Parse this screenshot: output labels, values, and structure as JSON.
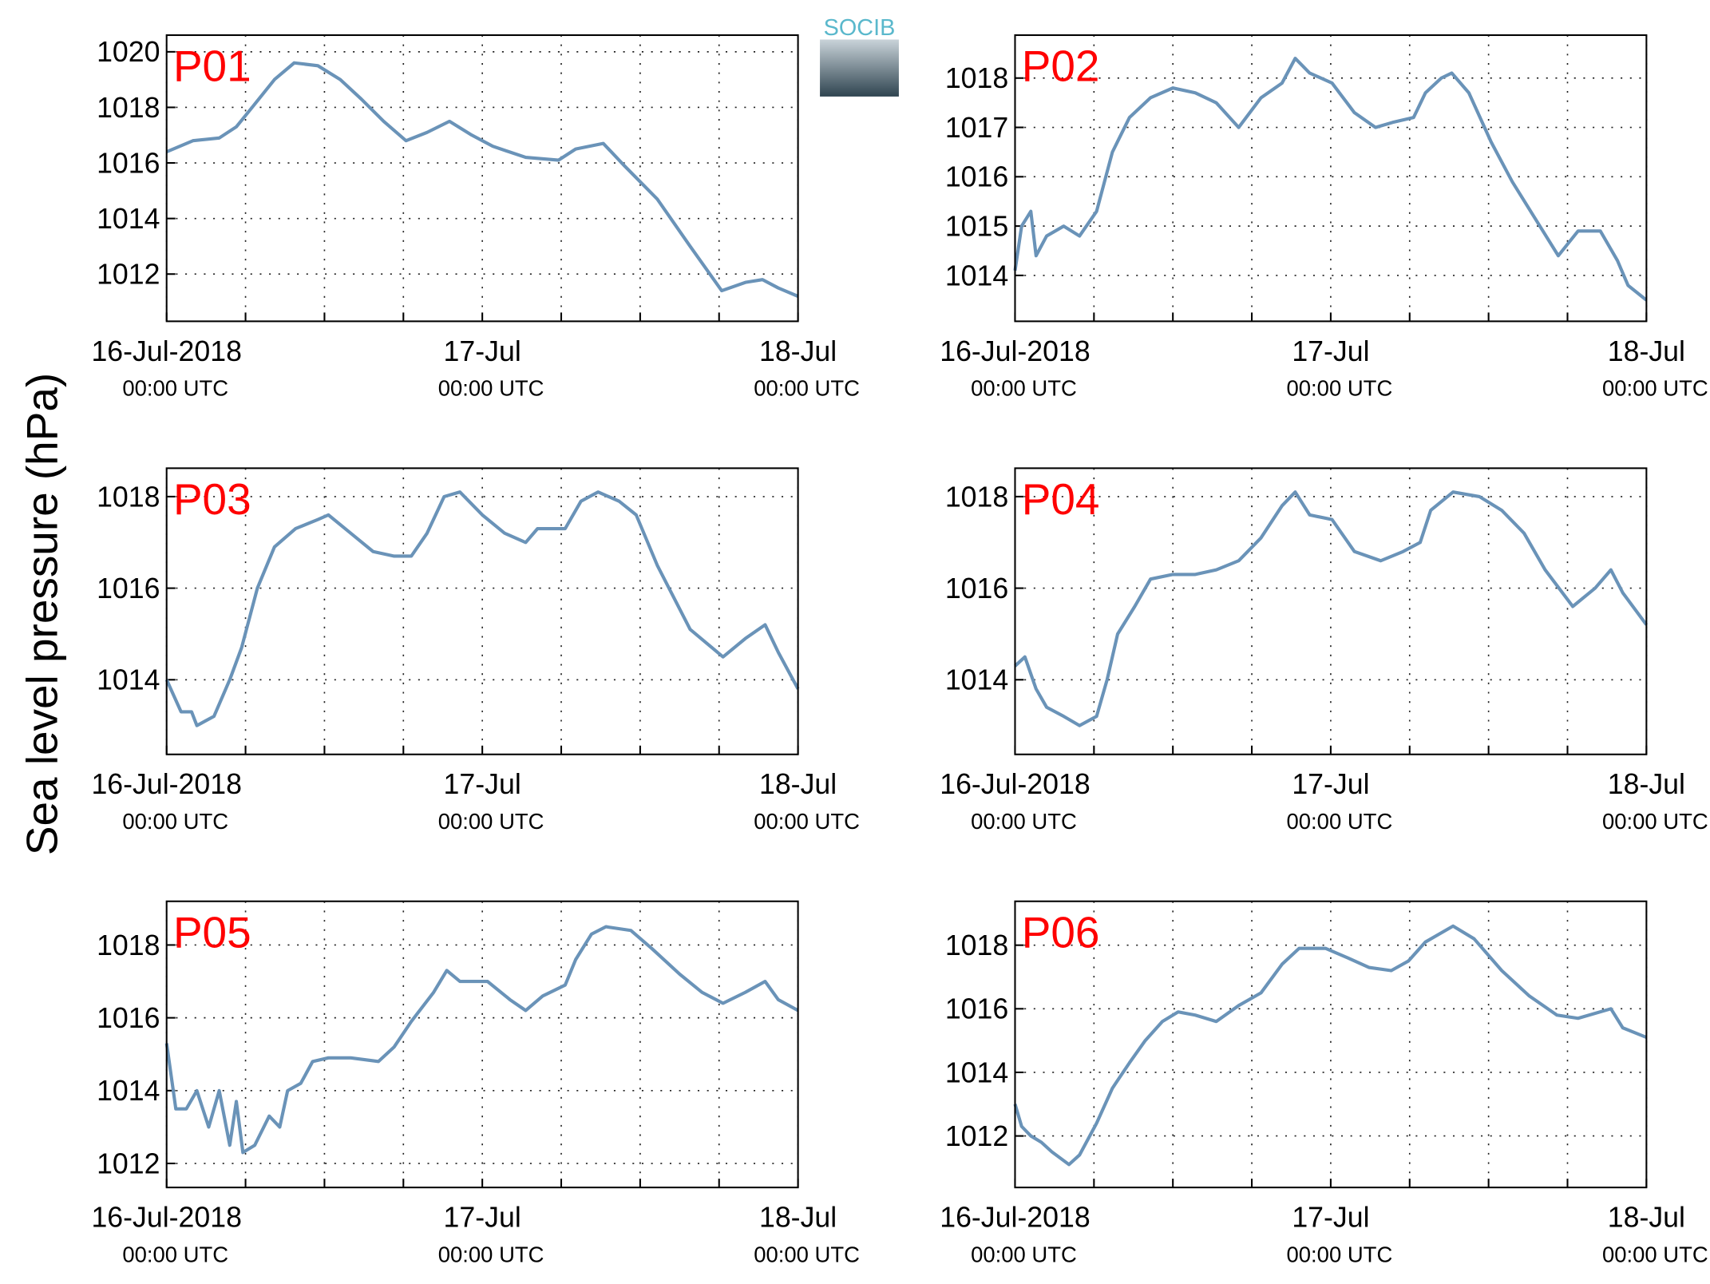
{
  "figure": {
    "ylabel": "Sea level pressure (hPa)",
    "logo": "SOCIB"
  },
  "chart_data": [
    {
      "type": "line",
      "title": "P01",
      "color": "#6a93b8",
      "xlim": [
        0,
        48
      ],
      "ylim": [
        1010.3,
        1020.6
      ],
      "yticks": [
        1012,
        1014,
        1016,
        1018,
        1020
      ],
      "grid": true,
      "xticks": [
        {
          "value": 0,
          "label": "16-Jul-2018",
          "sublabel": "00:00 UTC"
        },
        {
          "value": 24,
          "label": "17-Jul",
          "sublabel": "00:00 UTC"
        },
        {
          "value": 48,
          "label": "18-Jul",
          "sublabel": "00:00 UTC"
        }
      ],
      "xminor": [
        6,
        12,
        18,
        30,
        36,
        42
      ],
      "x": [
        0,
        2,
        4,
        5.3,
        6.5,
        8.2,
        9.7,
        11.5,
        13.2,
        14.8,
        16.5,
        18.2,
        19.8,
        21.5,
        23.2,
        24.8,
        27.3,
        29.8,
        31.1,
        33.2,
        34.8,
        37.3,
        39.8,
        42.2,
        44,
        45.3,
        46.5,
        48
      ],
      "values": [
        1016.4,
        1016.8,
        1016.9,
        1017.3,
        1018.0,
        1019.0,
        1019.6,
        1019.5,
        1019.0,
        1018.3,
        1017.5,
        1016.8,
        1017.1,
        1017.5,
        1017.0,
        1016.6,
        1016.2,
        1016.1,
        1016.5,
        1016.7,
        1015.9,
        1014.7,
        1013.0,
        1011.4,
        1011.7,
        1011.8,
        1011.5,
        1011.2
      ]
    },
    {
      "type": "line",
      "title": "P02",
      "color": "#6a93b8",
      "xlim": [
        0,
        48
      ],
      "ylim": [
        1013.07,
        1018.87
      ],
      "yticks": [
        1014,
        1015,
        1016,
        1017,
        1018
      ],
      "grid": true,
      "xticks": [
        {
          "value": 0,
          "label": "16-Jul-2018",
          "sublabel": "00:00 UTC"
        },
        {
          "value": 24,
          "label": "17-Jul",
          "sublabel": "00:00 UTC"
        },
        {
          "value": 48,
          "label": "18-Jul",
          "sublabel": "00:00 UTC"
        }
      ],
      "xminor": [
        6,
        12,
        18,
        30,
        36,
        42
      ],
      "x": [
        0,
        0.5,
        1.2,
        1.6,
        2.4,
        3.7,
        4.9,
        6.2,
        7.4,
        8.7,
        10.3,
        12,
        13.7,
        15.3,
        17,
        18.7,
        20.3,
        21.3,
        22.4,
        24.1,
        25.8,
        27.4,
        28.7,
        30.3,
        31.2,
        32.4,
        33.2,
        34.5,
        36.2,
        37.8,
        39.9,
        41.3,
        42.8,
        44.5,
        45.8,
        46.6,
        48
      ],
      "values": [
        1014.1,
        1015.0,
        1015.3,
        1014.4,
        1014.8,
        1015.0,
        1014.8,
        1015.3,
        1016.5,
        1017.2,
        1017.6,
        1017.8,
        1017.7,
        1017.5,
        1017.0,
        1017.6,
        1017.9,
        1018.4,
        1018.1,
        1017.9,
        1017.3,
        1017.0,
        1017.1,
        1017.2,
        1017.7,
        1018.0,
        1018.1,
        1017.7,
        1016.7,
        1015.9,
        1015.0,
        1014.4,
        1014.9,
        1014.9,
        1014.3,
        1013.8,
        1013.5
      ]
    },
    {
      "type": "line",
      "title": "P03",
      "color": "#6a93b8",
      "xlim": [
        0,
        48
      ],
      "ylim": [
        1012.37,
        1018.62
      ],
      "yticks": [
        1014,
        1016,
        1018
      ],
      "grid": true,
      "xticks": [
        {
          "value": 0,
          "label": "16-Jul-2018",
          "sublabel": "00:00 UTC"
        },
        {
          "value": 24,
          "label": "17-Jul",
          "sublabel": "00:00 UTC"
        },
        {
          "value": 48,
          "label": "18-Jul",
          "sublabel": "00:00 UTC"
        }
      ],
      "xminor": [
        6,
        12,
        18,
        30,
        36,
        42
      ],
      "x": [
        0,
        1.1,
        1.9,
        2.3,
        3.6,
        4.8,
        5.7,
        6.9,
        8.2,
        9.8,
        11.5,
        12.3,
        14,
        15.7,
        17.3,
        18.6,
        19.8,
        21.1,
        22.3,
        24,
        25.7,
        27.3,
        28.2,
        30.3,
        31.5,
        32.8,
        34.4,
        35.7,
        37.3,
        39.8,
        42.3,
        44,
        45.5,
        46.5,
        48
      ],
      "values": [
        1014.0,
        1013.3,
        1013.3,
        1013.0,
        1013.2,
        1014.0,
        1014.7,
        1016.0,
        1016.9,
        1017.3,
        1017.5,
        1017.6,
        1017.2,
        1016.8,
        1016.7,
        1016.7,
        1017.2,
        1018.0,
        1018.1,
        1017.6,
        1017.2,
        1017.0,
        1017.3,
        1017.3,
        1017.9,
        1018.1,
        1017.9,
        1017.6,
        1016.5,
        1015.1,
        1014.5,
        1014.9,
        1015.2,
        1014.6,
        1013.8
      ]
    },
    {
      "type": "line",
      "title": "P04",
      "color": "#6a93b8",
      "xlim": [
        0,
        48
      ],
      "ylim": [
        1012.37,
        1018.62
      ],
      "yticks": [
        1014,
        1016,
        1018
      ],
      "grid": true,
      "xticks": [
        {
          "value": 0,
          "label": "16-Jul-2018",
          "sublabel": "00:00 UTC"
        },
        {
          "value": 24,
          "label": "17-Jul",
          "sublabel": "00:00 UTC"
        },
        {
          "value": 48,
          "label": "18-Jul",
          "sublabel": "00:00 UTC"
        }
      ],
      "xminor": [
        6,
        12,
        18,
        30,
        36,
        42
      ],
      "x": [
        0,
        0.75,
        1.6,
        2.4,
        3.7,
        4.9,
        6.2,
        7,
        7.8,
        9.1,
        10.3,
        12,
        13.7,
        15.3,
        17,
        18.7,
        20.3,
        21.3,
        22.4,
        24.1,
        25.8,
        27.8,
        29.5,
        30.8,
        31.6,
        33.3,
        35.3,
        37,
        38.7,
        40.3,
        42.4,
        44.1,
        45.3,
        46.2,
        48
      ],
      "values": [
        1014.3,
        1014.5,
        1013.8,
        1013.4,
        1013.2,
        1013.0,
        1013.2,
        1014.0,
        1015.0,
        1015.6,
        1016.2,
        1016.3,
        1016.3,
        1016.4,
        1016.6,
        1017.1,
        1017.8,
        1018.1,
        1017.6,
        1017.5,
        1016.8,
        1016.6,
        1016.8,
        1017.0,
        1017.7,
        1018.1,
        1018.0,
        1017.7,
        1017.2,
        1016.4,
        1015.6,
        1016.0,
        1016.4,
        1015.9,
        1015.2
      ]
    },
    {
      "type": "line",
      "title": "P05",
      "color": "#6a93b8",
      "xlim": [
        0,
        48
      ],
      "ylim": [
        1011.34,
        1019.2
      ],
      "yticks": [
        1012,
        1014,
        1016,
        1018
      ],
      "grid": true,
      "xticks": [
        {
          "value": 0,
          "label": "16-Jul-2018",
          "sublabel": "00:00 UTC"
        },
        {
          "value": 24,
          "label": "17-Jul",
          "sublabel": "00:00 UTC"
        },
        {
          "value": 48,
          "label": "18-Jul",
          "sublabel": "00:00 UTC"
        }
      ],
      "xminor": [
        6,
        12,
        18,
        30,
        36,
        42
      ],
      "x": [
        0,
        0.7,
        1.5,
        2.3,
        3.2,
        4,
        4.8,
        5.3,
        5.8,
        6.7,
        7.8,
        8.6,
        9.2,
        10.2,
        11.1,
        12.3,
        14,
        16.1,
        17.3,
        18.6,
        20.3,
        21.3,
        22.3,
        24.4,
        26.1,
        27.3,
        28.6,
        30.3,
        31.1,
        32.3,
        33.4,
        35.3,
        36.9,
        39,
        40.7,
        42.3,
        44,
        45.5,
        46.5,
        48
      ],
      "values": [
        1015.3,
        1013.5,
        1013.5,
        1014.0,
        1013.0,
        1014.0,
        1012.5,
        1013.7,
        1012.3,
        1012.5,
        1013.3,
        1013.0,
        1014.0,
        1014.2,
        1014.8,
        1014.9,
        1014.9,
        1014.8,
        1015.2,
        1015.9,
        1016.7,
        1017.3,
        1017.0,
        1017.0,
        1016.5,
        1016.2,
        1016.6,
        1016.9,
        1017.6,
        1018.3,
        1018.5,
        1018.4,
        1017.9,
        1017.2,
        1016.7,
        1016.4,
        1016.7,
        1017.0,
        1016.5,
        1016.2
      ]
    },
    {
      "type": "line",
      "title": "P06",
      "color": "#6a93b8",
      "xlim": [
        0,
        48
      ],
      "ylim": [
        1010.38,
        1019.38
      ],
      "yticks": [
        1012,
        1014,
        1016,
        1018
      ],
      "grid": true,
      "xticks": [
        {
          "value": 0,
          "label": "16-Jul-2018",
          "sublabel": "00:00 UTC"
        },
        {
          "value": 24,
          "label": "17-Jul",
          "sublabel": "00:00 UTC"
        },
        {
          "value": 48,
          "label": "18-Jul",
          "sublabel": "00:00 UTC"
        }
      ],
      "xminor": [
        6,
        12,
        18,
        30,
        36,
        42
      ],
      "x": [
        0,
        0.5,
        1.2,
        2,
        2.8,
        4.1,
        4.9,
        6.2,
        7.4,
        8.7,
        9.9,
        11.2,
        12.4,
        13.7,
        15.3,
        17,
        18.7,
        20.3,
        21.6,
        23.6,
        25.3,
        26.9,
        28.6,
        29.9,
        31.2,
        33.3,
        34.9,
        37,
        39.1,
        41.2,
        42.8,
        45.3,
        46.2,
        48
      ],
      "values": [
        1013.0,
        1012.3,
        1012.0,
        1011.8,
        1011.5,
        1011.1,
        1011.4,
        1012.4,
        1013.5,
        1014.3,
        1015.0,
        1015.6,
        1015.9,
        1015.8,
        1015.6,
        1016.1,
        1016.5,
        1017.4,
        1017.9,
        1017.9,
        1017.6,
        1017.3,
        1017.2,
        1017.5,
        1018.1,
        1018.6,
        1018.2,
        1017.2,
        1016.4,
        1015.8,
        1015.7,
        1016.0,
        1015.4,
        1015.1
      ]
    }
  ]
}
